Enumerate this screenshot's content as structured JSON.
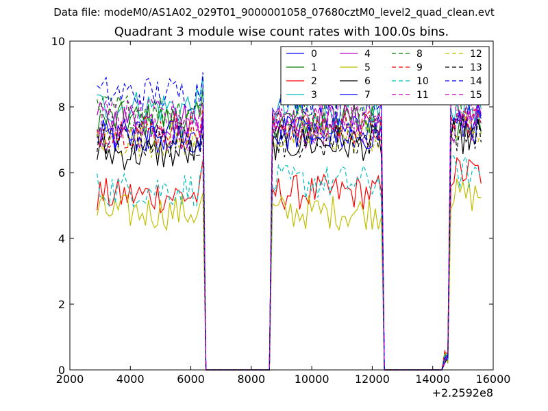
{
  "chart_data": {
    "type": "line",
    "suptitle": "Data file: modeM0/AS1A02_029T01_9000001058_07680cztM0_level2_quad_clean.evt",
    "title": "Quadrant 3 module wise count rates with 100.0s bins.",
    "xlabel": "",
    "ylabel": "",
    "xlim": [
      2000,
      16000
    ],
    "ylim": [
      0,
      10
    ],
    "x_offset_label": "+2.2592e8",
    "xticks": [
      2000,
      4000,
      6000,
      8000,
      10000,
      12000,
      14000,
      16000
    ],
    "xtick_labels": [
      "2000",
      "4000",
      "6000",
      "8000",
      "10000",
      "12000",
      "14000",
      "16000"
    ],
    "yticks": [
      0,
      2,
      4,
      6,
      8,
      10
    ],
    "ytick_labels": [
      "0",
      "2",
      "4",
      "6",
      "8",
      "10"
    ],
    "x_start": 2900,
    "x_step": 100,
    "segments": [
      {
        "start": 2900,
        "end": 6400
      },
      {
        "start": 8700,
        "end": 12300
      },
      {
        "start": 14600,
        "end": 15600
      }
    ],
    "gap_value": 0,
    "series": [
      {
        "name": "0",
        "color": "#0000ff",
        "dash": "solid",
        "levels": [
          7.0,
          7.3,
          7.6
        ]
      },
      {
        "name": "1",
        "color": "#008000",
        "dash": "solid",
        "levels": [
          7.6,
          7.6,
          7.4
        ]
      },
      {
        "name": "2",
        "color": "#ff0000",
        "dash": "solid",
        "levels": [
          5.3,
          5.4,
          6.0
        ]
      },
      {
        "name": "3",
        "color": "#00bfbf",
        "dash": "solid",
        "levels": [
          8.0,
          7.9,
          8.0
        ]
      },
      {
        "name": "4",
        "color": "#bf00bf",
        "dash": "solid",
        "levels": [
          7.6,
          7.6,
          7.8
        ]
      },
      {
        "name": "5",
        "color": "#bfbf00",
        "dash": "solid",
        "levels": [
          4.8,
          4.8,
          5.3
        ]
      },
      {
        "name": "6",
        "color": "#000000",
        "dash": "solid",
        "levels": [
          6.6,
          6.9,
          7.1
        ]
      },
      {
        "name": "7",
        "color": "#0000ff",
        "dash": "solid",
        "levels": [
          7.1,
          7.2,
          7.4
        ]
      },
      {
        "name": "8",
        "color": "#008000",
        "dash": "dashed",
        "levels": [
          7.9,
          7.7,
          7.9
        ]
      },
      {
        "name": "9",
        "color": "#ff0000",
        "dash": "dashed",
        "levels": [
          7.3,
          7.4,
          7.6
        ]
      },
      {
        "name": "10",
        "color": "#00bfbf",
        "dash": "dashed",
        "levels": [
          5.5,
          5.7,
          6.0
        ]
      },
      {
        "name": "11",
        "color": "#bf00bf",
        "dash": "dashed",
        "levels": [
          7.2,
          7.2,
          7.4
        ]
      },
      {
        "name": "12",
        "color": "#bfbf00",
        "dash": "dashed",
        "levels": [
          7.0,
          7.1,
          7.3
        ]
      },
      {
        "name": "13",
        "color": "#000000",
        "dash": "dashed",
        "levels": [
          7.0,
          7.0,
          7.2
        ]
      },
      {
        "name": "14",
        "color": "#0000ff",
        "dash": "dashed",
        "levels": [
          8.4,
          8.3,
          8.6
        ]
      },
      {
        "name": "15",
        "color": "#bf00bf",
        "dash": "dashed",
        "levels": [
          7.7,
          7.8,
          7.9
        ]
      }
    ],
    "legend": {
      "placement": "top-right",
      "columns": 4
    }
  }
}
